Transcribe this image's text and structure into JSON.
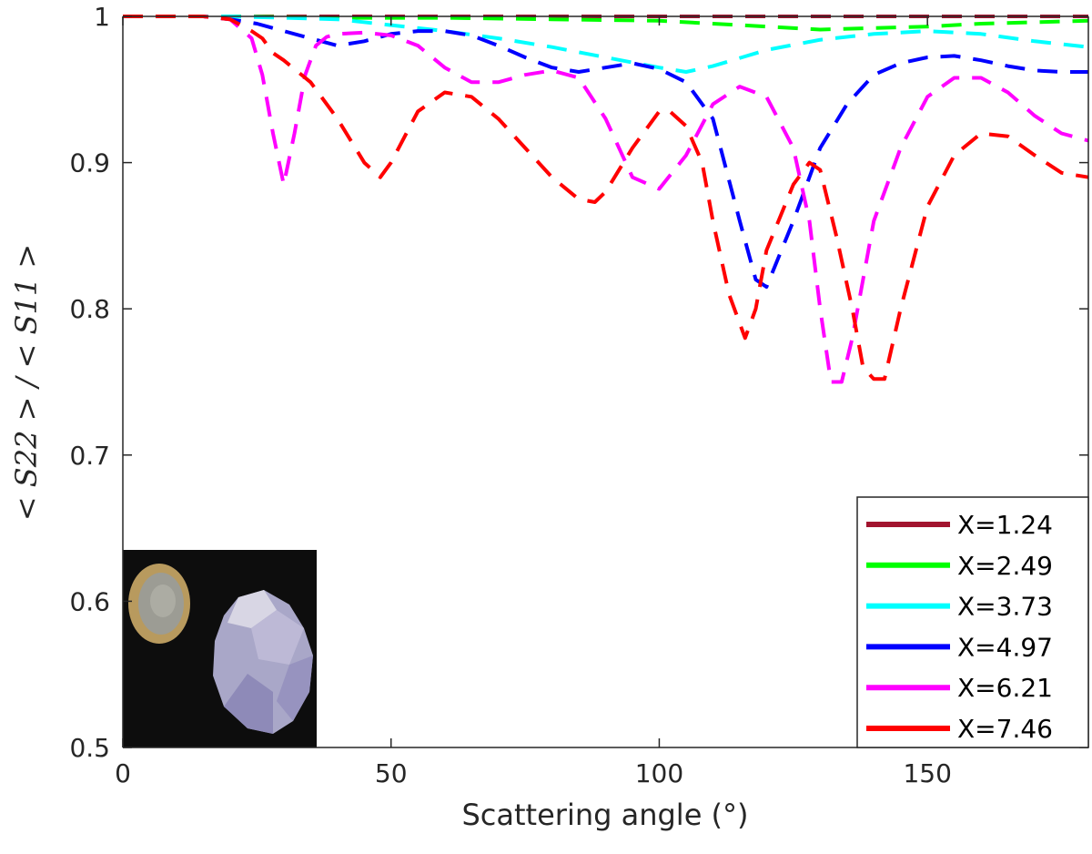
{
  "chart_data": {
    "type": "line",
    "xlabel": "Scattering angle (°)",
    "ylabel": "< S22 > / < S11 >",
    "xlim": [
      0,
      180
    ],
    "ylim": [
      0.5,
      1.0
    ],
    "x_ticks": [
      "0",
      "50",
      "100",
      "150"
    ],
    "y_ticks": [
      "0.5",
      "0.6",
      "0.7",
      "0.8",
      "0.9",
      "1"
    ],
    "grid": false,
    "legend_position": "bottom-right",
    "legend_style": "solid",
    "line_style": "dashed",
    "inset_image": "photo of a coin next to a translucent crystalline particle",
    "series": [
      {
        "name": "X=1.24",
        "color": "#a2142f",
        "x": [
          0,
          20,
          40,
          60,
          80,
          100,
          120,
          140,
          160,
          180
        ],
        "y": [
          1.0,
          1.0,
          1.0,
          1.0,
          1.0,
          1.0,
          1.0,
          1.0,
          1.0,
          1.0
        ]
      },
      {
        "name": "X=2.49",
        "color": "#00ff00",
        "x": [
          0,
          20,
          40,
          60,
          80,
          100,
          110,
          120,
          130,
          140,
          150,
          160,
          170,
          180
        ],
        "y": [
          1.0,
          1.0,
          0.999,
          0.999,
          0.998,
          0.997,
          0.995,
          0.993,
          0.991,
          0.992,
          0.993,
          0.995,
          0.996,
          0.997
        ]
      },
      {
        "name": "X=3.73",
        "color": "#00ffff",
        "x": [
          0,
          20,
          30,
          40,
          50,
          60,
          70,
          80,
          90,
          100,
          105,
          110,
          120,
          130,
          140,
          150,
          160,
          170,
          180
        ],
        "y": [
          1.0,
          1.0,
          0.999,
          0.998,
          0.994,
          0.99,
          0.985,
          0.979,
          0.972,
          0.965,
          0.962,
          0.966,
          0.977,
          0.984,
          0.988,
          0.99,
          0.988,
          0.983,
          0.979
        ]
      },
      {
        "name": "X=4.97",
        "color": "#0000ff",
        "x": [
          0,
          15,
          20,
          25,
          30,
          35,
          40,
          45,
          50,
          55,
          60,
          65,
          70,
          75,
          80,
          85,
          90,
          95,
          100,
          105,
          110,
          115,
          118,
          120,
          125,
          130,
          135,
          140,
          145,
          150,
          155,
          160,
          165,
          170,
          175,
          180
        ],
        "y": [
          1.0,
          1.0,
          0.998,
          0.995,
          0.99,
          0.985,
          0.98,
          0.983,
          0.988,
          0.99,
          0.99,
          0.987,
          0.98,
          0.972,
          0.965,
          0.962,
          0.965,
          0.968,
          0.964,
          0.955,
          0.93,
          0.86,
          0.82,
          0.815,
          0.86,
          0.91,
          0.94,
          0.96,
          0.968,
          0.972,
          0.973,
          0.97,
          0.966,
          0.963,
          0.962,
          0.962
        ]
      },
      {
        "name": "X=6.21",
        "color": "#ff00ff",
        "x": [
          0,
          15,
          20,
          24,
          26,
          28,
          30,
          32,
          34,
          36,
          38,
          40,
          45,
          50,
          55,
          60,
          65,
          70,
          75,
          80,
          85,
          90,
          95,
          100,
          105,
          110,
          115,
          120,
          125,
          128,
          130,
          132,
          134,
          136,
          138,
          140,
          145,
          150,
          155,
          160,
          165,
          170,
          175,
          180
        ],
        "y": [
          1.0,
          1.0,
          0.998,
          0.985,
          0.96,
          0.92,
          0.885,
          0.92,
          0.96,
          0.98,
          0.986,
          0.988,
          0.989,
          0.987,
          0.98,
          0.965,
          0.955,
          0.955,
          0.96,
          0.963,
          0.958,
          0.93,
          0.89,
          0.882,
          0.905,
          0.94,
          0.952,
          0.945,
          0.91,
          0.86,
          0.8,
          0.75,
          0.75,
          0.78,
          0.82,
          0.86,
          0.91,
          0.945,
          0.958,
          0.958,
          0.948,
          0.932,
          0.92,
          0.915
        ]
      },
      {
        "name": "X=7.46",
        "color": "#ff0000",
        "x": [
          0,
          15,
          20,
          24,
          26,
          28,
          30,
          35,
          40,
          45,
          48,
          50,
          55,
          60,
          65,
          70,
          75,
          80,
          85,
          88,
          90,
          95,
          100,
          102,
          105,
          108,
          110,
          113,
          116,
          118,
          120,
          125,
          128,
          130,
          133,
          136,
          138,
          140,
          142,
          145,
          150,
          155,
          160,
          165,
          170,
          175,
          180
        ],
        "y": [
          1.0,
          1.0,
          0.998,
          0.99,
          0.985,
          0.975,
          0.97,
          0.955,
          0.93,
          0.9,
          0.89,
          0.9,
          0.935,
          0.948,
          0.945,
          0.93,
          0.91,
          0.89,
          0.875,
          0.873,
          0.88,
          0.91,
          0.935,
          0.935,
          0.925,
          0.9,
          0.86,
          0.81,
          0.78,
          0.8,
          0.84,
          0.885,
          0.9,
          0.895,
          0.85,
          0.8,
          0.76,
          0.752,
          0.752,
          0.8,
          0.87,
          0.905,
          0.92,
          0.918,
          0.905,
          0.893,
          0.89
        ]
      }
    ]
  }
}
